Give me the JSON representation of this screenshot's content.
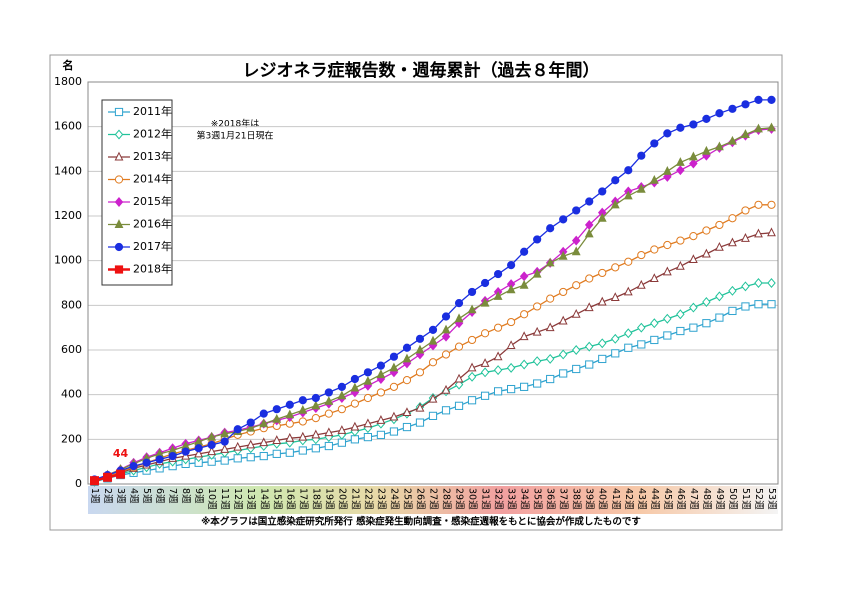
{
  "chart_data": {
    "type": "line",
    "title": "レジオネラ症報告数・週毎累計（過去８年間）",
    "ylabel": "名",
    "annotation": [
      "※2018年は",
      "第3週1月21日現在"
    ],
    "footnote": "※本グラフは国立感染症研究所発行 感染症発生動向調査・感染症週報をもとに協会が作成したものです",
    "categories": [
      "1週",
      "2週",
      "3週",
      "4週",
      "5週",
      "6週",
      "7週",
      "8週",
      "9週",
      "10週",
      "11週",
      "12週",
      "13週",
      "14週",
      "15週",
      "16週",
      "17週",
      "18週",
      "19週",
      "20週",
      "21週",
      "22週",
      "23週",
      "24週",
      "25週",
      "26週",
      "27週",
      "28週",
      "29週",
      "30週",
      "31週",
      "32週",
      "33週",
      "34週",
      "35週",
      "36週",
      "37週",
      "38週",
      "39週",
      "40週",
      "41週",
      "42週",
      "43週",
      "44週",
      "45週",
      "46週",
      "47週",
      "48週",
      "49週",
      "50週",
      "51週",
      "52週",
      "53週"
    ],
    "ylim": [
      0,
      1800
    ],
    "yticks": [
      0,
      200,
      400,
      600,
      800,
      1000,
      1200,
      1400,
      1600,
      1800
    ],
    "grid": true,
    "legend": "upper left",
    "series": [
      {
        "name": "2011年",
        "color": "#2fa3cf",
        "marker": "square",
        "filled": false,
        "values": [
          10,
          25,
          40,
          50,
          60,
          70,
          80,
          90,
          95,
          100,
          105,
          115,
          120,
          125,
          135,
          140,
          150,
          160,
          170,
          185,
          200,
          210,
          220,
          235,
          255,
          275,
          305,
          330,
          350,
          375,
          395,
          415,
          425,
          435,
          450,
          470,
          495,
          515,
          535,
          560,
          585,
          610,
          625,
          645,
          665,
          685,
          700,
          720,
          745,
          775,
          795,
          805,
          805
        ]
      },
      {
        "name": "2012年",
        "color": "#22c39b",
        "marker": "diamond",
        "filled": false,
        "values": [
          10,
          30,
          45,
          60,
          75,
          90,
          100,
          110,
          120,
          130,
          140,
          150,
          160,
          170,
          180,
          185,
          195,
          200,
          210,
          220,
          235,
          250,
          270,
          290,
          315,
          345,
          385,
          415,
          445,
          480,
          500,
          510,
          520,
          535,
          550,
          560,
          580,
          600,
          615,
          630,
          650,
          675,
          700,
          720,
          740,
          760,
          790,
          815,
          840,
          865,
          885,
          900,
          900
        ]
      },
      {
        "name": "2013年",
        "color": "#8b3a3a",
        "marker": "triangle",
        "filled": false,
        "values": [
          10,
          30,
          50,
          70,
          85,
          100,
          115,
          125,
          135,
          145,
          155,
          165,
          175,
          185,
          195,
          205,
          210,
          220,
          230,
          240,
          255,
          270,
          285,
          300,
          320,
          340,
          380,
          420,
          470,
          520,
          540,
          570,
          620,
          660,
          680,
          700,
          730,
          760,
          790,
          815,
          835,
          860,
          890,
          920,
          950,
          975,
          1005,
          1030,
          1060,
          1080,
          1100,
          1120,
          1125
        ]
      },
      {
        "name": "2014年",
        "color": "#e07b20",
        "marker": "circle",
        "filled": false,
        "values": [
          15,
          35,
          55,
          75,
          95,
          115,
          135,
          150,
          165,
          180,
          200,
          220,
          235,
          250,
          260,
          270,
          280,
          295,
          315,
          335,
          360,
          385,
          410,
          435,
          465,
          500,
          545,
          580,
          615,
          645,
          675,
          700,
          725,
          760,
          795,
          830,
          860,
          890,
          920,
          945,
          970,
          995,
          1025,
          1050,
          1070,
          1090,
          1110,
          1135,
          1160,
          1190,
          1225,
          1250,
          1250
        ]
      },
      {
        "name": "2015年",
        "color": "#cc22cc",
        "marker": "diamond",
        "filled": true,
        "values": [
          15,
          40,
          65,
          95,
          120,
          140,
          160,
          180,
          195,
          210,
          230,
          240,
          255,
          270,
          285,
          300,
          320,
          340,
          360,
          385,
          410,
          440,
          470,
          500,
          540,
          580,
          620,
          660,
          720,
          770,
          820,
          860,
          895,
          930,
          950,
          990,
          1040,
          1090,
          1160,
          1215,
          1265,
          1310,
          1330,
          1350,
          1375,
          1405,
          1435,
          1470,
          1505,
          1530,
          1560,
          1585,
          1590
        ]
      },
      {
        "name": "2016年",
        "color": "#7a8c3c",
        "marker": "triangle",
        "filled": true,
        "values": [
          15,
          40,
          65,
          90,
          115,
          135,
          150,
          170,
          190,
          210,
          225,
          235,
          250,
          270,
          290,
          310,
          330,
          350,
          370,
          395,
          430,
          460,
          490,
          520,
          560,
          600,
          640,
          690,
          740,
          780,
          810,
          840,
          870,
          890,
          940,
          990,
          1020,
          1040,
          1120,
          1190,
          1250,
          1290,
          1320,
          1360,
          1400,
          1440,
          1465,
          1490,
          1510,
          1535,
          1565,
          1590,
          1595
        ]
      },
      {
        "name": "2017年",
        "color": "#1a2ee0",
        "marker": "circle",
        "filled": true,
        "values": [
          20,
          40,
          60,
          80,
          95,
          110,
          125,
          145,
          160,
          175,
          190,
          245,
          275,
          315,
          335,
          355,
          375,
          385,
          410,
          435,
          470,
          500,
          530,
          570,
          610,
          650,
          690,
          750,
          810,
          860,
          900,
          940,
          980,
          1040,
          1095,
          1145,
          1185,
          1225,
          1265,
          1310,
          1360,
          1405,
          1470,
          1525,
          1570,
          1595,
          1610,
          1635,
          1660,
          1680,
          1700,
          1720,
          1720
        ]
      },
      {
        "name": "2018年",
        "color": "#ee1111",
        "marker": "square",
        "filled": true,
        "values": [
          15,
          30,
          44,
          null,
          null,
          null,
          null,
          null,
          null,
          null,
          null,
          null,
          null,
          null,
          null,
          null,
          null,
          null,
          null,
          null,
          null,
          null,
          null,
          null,
          null,
          null,
          null,
          null,
          null,
          null,
          null,
          null,
          null,
          null,
          null,
          null,
          null,
          null,
          null,
          null,
          null,
          null,
          null,
          null,
          null,
          null,
          null,
          null,
          null,
          null,
          null,
          null,
          null
        ]
      }
    ]
  }
}
